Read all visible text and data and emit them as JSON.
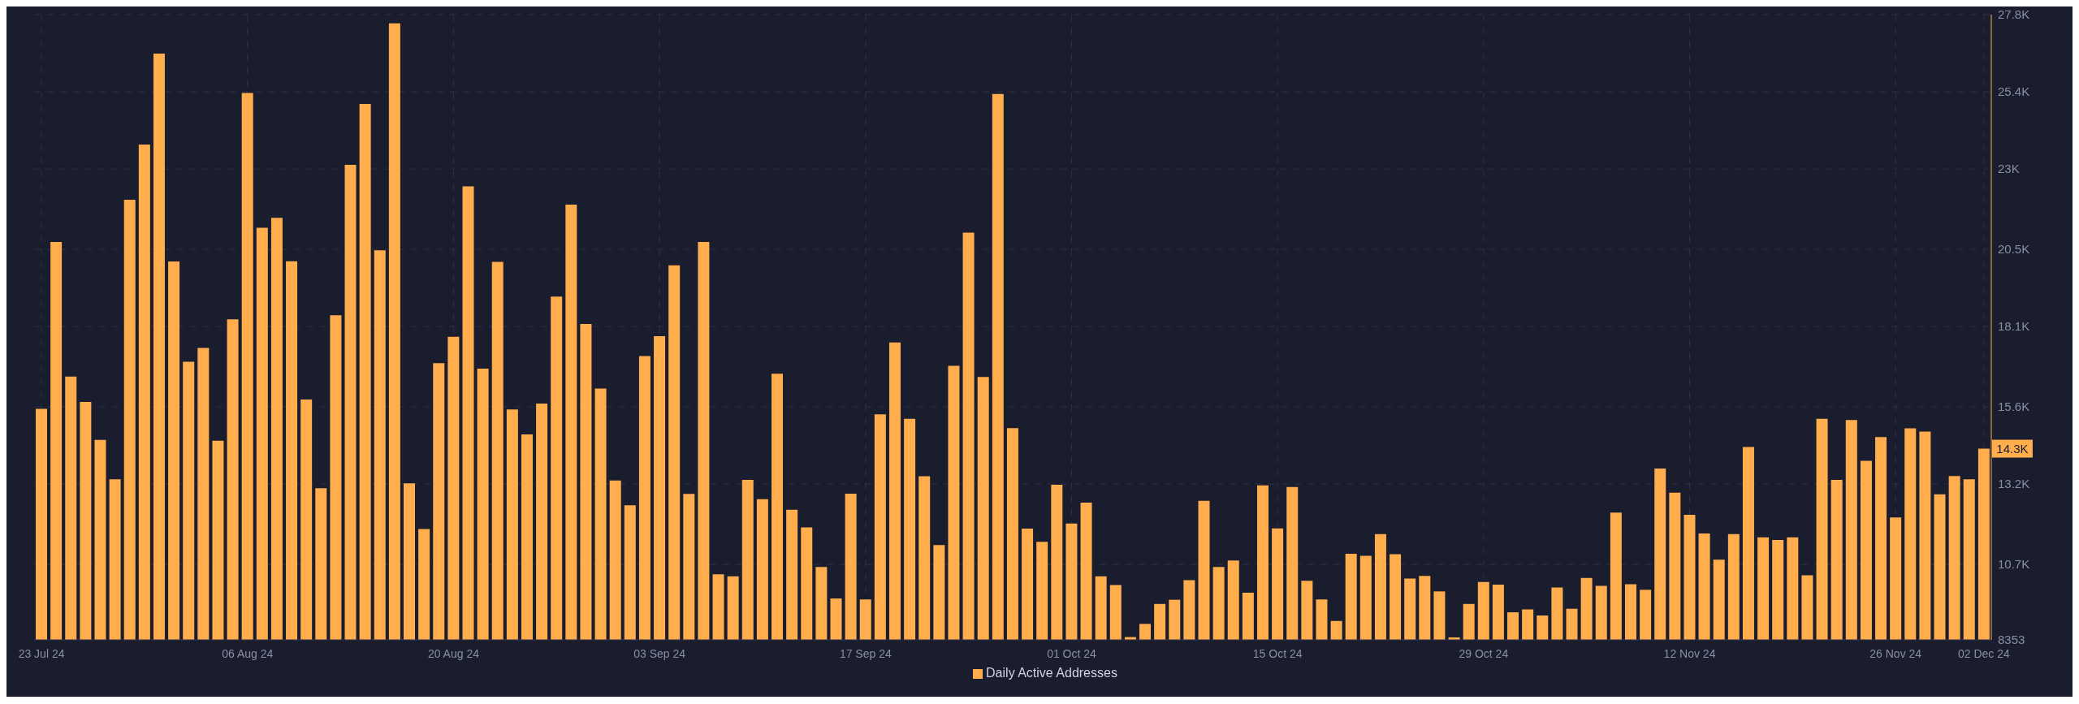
{
  "chart_data": {
    "type": "bar",
    "categories": [
      "23 Jul 24",
      null,
      null,
      null,
      null,
      null,
      null,
      null,
      null,
      null,
      null,
      null,
      null,
      null,
      "06 Aug 24",
      null,
      null,
      null,
      null,
      null,
      null,
      null,
      null,
      null,
      null,
      null,
      null,
      null,
      "20 Aug 24",
      null,
      null,
      null,
      null,
      null,
      null,
      null,
      null,
      null,
      null,
      null,
      null,
      null,
      "03 Sep 24",
      null,
      null,
      null,
      null,
      null,
      null,
      null,
      null,
      null,
      null,
      null,
      null,
      null,
      "17 Sep 24",
      null,
      null,
      null,
      null,
      null,
      null,
      null,
      null,
      null,
      null,
      null,
      null,
      null,
      "01 Oct 24",
      null,
      null,
      null,
      null,
      null,
      null,
      null,
      null,
      null,
      null,
      null,
      null,
      null,
      "15 Oct 24",
      null,
      null,
      null,
      null,
      null,
      null,
      null,
      null,
      null,
      null,
      null,
      null,
      null,
      "29 Oct 24",
      null,
      null,
      null,
      null,
      null,
      null,
      null,
      null,
      null,
      null,
      null,
      null,
      null,
      "12 Nov 24",
      null,
      null,
      null,
      null,
      null,
      null,
      null,
      null,
      null,
      null,
      null,
      null,
      null,
      "26 Nov 24",
      null,
      null,
      null,
      null,
      null,
      "02 Dec 24"
    ],
    "series": [
      {
        "name": "Daily Active Addresses",
        "color": "#ffad4d",
        "values": [
          15540,
          20730,
          16540,
          15750,
          14570,
          13350,
          22040,
          23760,
          26590,
          20120,
          17000,
          17430,
          14550,
          18320,
          25360,
          21170,
          21480,
          20130,
          15830,
          13070,
          18450,
          23130,
          25020,
          20470,
          27530,
          13220,
          11800,
          16960,
          17780,
          22460,
          16790,
          20110,
          15520,
          14740,
          15700,
          19030,
          21890,
          18180,
          16170,
          13310,
          12540,
          17180,
          17800,
          20000,
          12890,
          20730,
          10390,
          10330,
          13330,
          12730,
          16630,
          12400,
          11850,
          10620,
          9640,
          12900,
          9610,
          15370,
          17600,
          15230,
          13440,
          11300,
          16880,
          21020,
          16530,
          25330,
          14940,
          11810,
          11400,
          13180,
          11970,
          12620,
          10330,
          10060,
          8440,
          8850,
          9470,
          9600,
          10210,
          12680,
          10620,
          10820,
          9820,
          13160,
          11820,
          13110,
          10190,
          9610,
          8940,
          11030,
          10970,
          11640,
          11020,
          10260,
          10340,
          9860,
          8430,
          9470,
          10150,
          10070,
          9210,
          9300,
          9110,
          9980,
          9320,
          10280,
          10030,
          12310,
          10080,
          9910,
          13680,
          12930,
          12240,
          11660,
          10850,
          11640,
          14350,
          11540,
          11460,
          11540,
          10360,
          15230,
          13330,
          15190,
          13920,
          14660,
          12160,
          14930,
          14830,
          12880,
          13450,
          13350,
          14300
        ]
      }
    ],
    "ylim": [
      8353,
      27800
    ],
    "yticks": [
      8353,
      {
        "value": 10700,
        "label": "10.7K"
      },
      {
        "value": 13200,
        "label": "13.2K"
      },
      {
        "value": 15600,
        "label": "15.6K"
      },
      {
        "value": 18100,
        "label": "18.1K"
      },
      {
        "value": 20500,
        "label": "20.5K"
      },
      {
        "value": 23000,
        "label": "23K"
      },
      {
        "value": 25400,
        "label": "25.4K"
      },
      {
        "value": 27800,
        "label": "27.8K"
      }
    ],
    "annotations": [
      {
        "text": "14.3K",
        "x": "02 Dec 24",
        "y": 14300
      }
    ],
    "grid": true,
    "legend": "bottom"
  }
}
